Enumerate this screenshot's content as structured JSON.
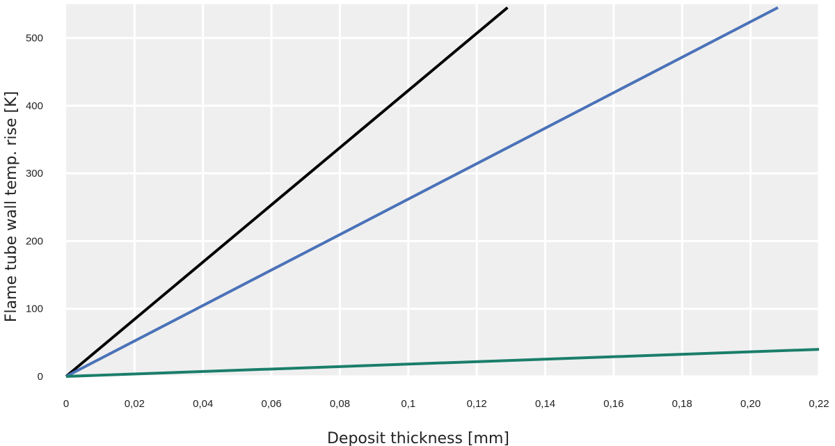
{
  "chart_data": {
    "type": "line",
    "title": "",
    "xlabel": "Deposit thickness [mm]",
    "ylabel": "Flame tube wall temp. rise [K]",
    "xlim": [
      0,
      0.22
    ],
    "ylim": [
      0,
      550
    ],
    "grid": true,
    "legend": "none",
    "x_ticks": [
      {
        "value": 0,
        "label": "0"
      },
      {
        "value": 0.02,
        "label": "0,02"
      },
      {
        "value": 0.04,
        "label": "0,04"
      },
      {
        "value": 0.06,
        "label": "0,06"
      },
      {
        "value": 0.08,
        "label": "0,08"
      },
      {
        "value": 0.1,
        "label": "0,1"
      },
      {
        "value": 0.12,
        "label": "0,12"
      },
      {
        "value": 0.14,
        "label": "0,14"
      },
      {
        "value": 0.16,
        "label": "0,16"
      },
      {
        "value": 0.18,
        "label": "0,18"
      },
      {
        "value": 0.2,
        "label": "0,20"
      },
      {
        "value": 0.22,
        "label": "0,22"
      }
    ],
    "y_ticks": [
      {
        "value": 0,
        "label": "0"
      },
      {
        "value": 100,
        "label": "100"
      },
      {
        "value": 200,
        "label": "200"
      },
      {
        "value": 300,
        "label": "300"
      },
      {
        "value": 400,
        "label": "400"
      },
      {
        "value": 500,
        "label": "500"
      }
    ],
    "series": [
      {
        "color": "#000000",
        "x": [
          0,
          0.129
        ],
        "y": [
          0,
          545
        ]
      },
      {
        "color": "#4a72b8",
        "x": [
          0,
          0.208
        ],
        "y": [
          0,
          545
        ]
      },
      {
        "color": "#1a7e6a",
        "x": [
          0,
          0.22
        ],
        "y": [
          0,
          40
        ]
      }
    ],
    "colors": {
      "background": "#efefef",
      "grid": "#ffffff",
      "text": "#222222"
    }
  }
}
